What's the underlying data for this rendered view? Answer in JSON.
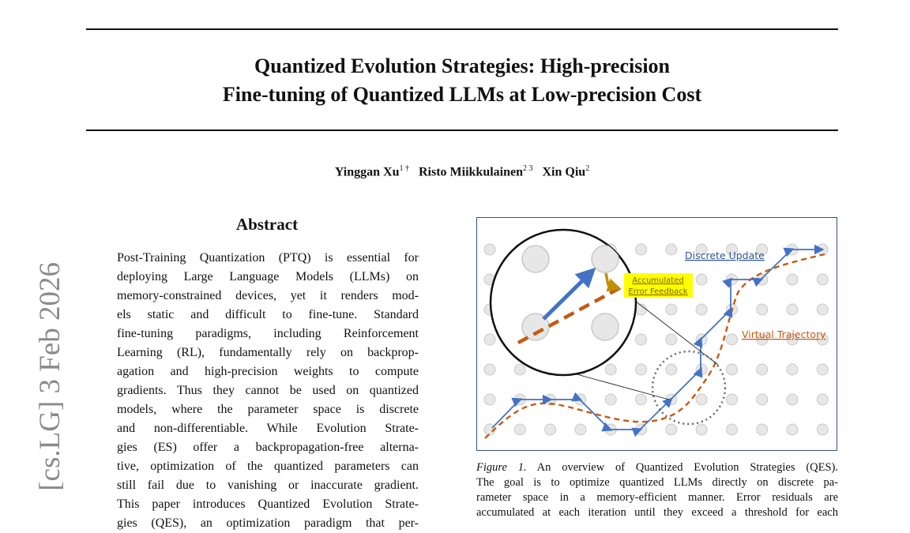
{
  "arxiv_stamp": "[cs.LG]  3 Feb 2026",
  "title": {
    "line1": "Quantized Evolution Strategies: High-precision",
    "line2": "Fine-tuning of Quantized LLMs at Low-precision Cost"
  },
  "authors": [
    {
      "name": "Yinggan Xu",
      "sup": "1 †"
    },
    {
      "name": "Risto Miikkulainen",
      "sup": "2 3"
    },
    {
      "name": "Xin Qiu",
      "sup": "2"
    }
  ],
  "abstract": {
    "heading": "Abstract",
    "lines": [
      "Post-Training Quantization (PTQ) is essential for",
      "deploying Large Language Models (LLMs) on",
      "memory-constrained devices, yet it renders mod-",
      "els static and difficult to fine-tune.  Standard",
      "fine-tuning paradigms, including Reinforcement",
      "Learning (RL), fundamentally rely on backprop-",
      "agation and high-precision weights to compute",
      "gradients. Thus they cannot be used on quantized",
      "models, where the parameter space is discrete",
      "and non-differentiable.  While Evolution Strate-",
      "gies (ES) offer a backpropagation-free alterna-",
      "tive, optimization of the quantized parameters can",
      "still fail due to vanishing or inaccurate gradient.",
      "This paper introduces Quantized Evolution Strate-",
      "gies (QES), an optimization paradigm that per-"
    ]
  },
  "figure": {
    "labels": {
      "discrete_update": "Discrete Update",
      "accumulated_1": "Accumulated",
      "accumulated_2": "Error Feedback",
      "virtual_trajectory": "Virtual Trajectory"
    },
    "colors": {
      "blue": "#4472c4",
      "orange": "#c55a11",
      "highlight": "#ffff00",
      "dot_fill": "#e7e7e7",
      "dot_stroke": "#c9c9c9"
    }
  },
  "caption": {
    "label": "Figure 1.",
    "lines": [
      " An overview of Quantized Evolution Strategies (QES).",
      "The goal is to optimize quantized LLMs directly on discrete pa-",
      "rameter space in a memory-efficient manner. Error residuals are",
      "accumulated at each iteration until they exceed a threshold for each"
    ]
  }
}
